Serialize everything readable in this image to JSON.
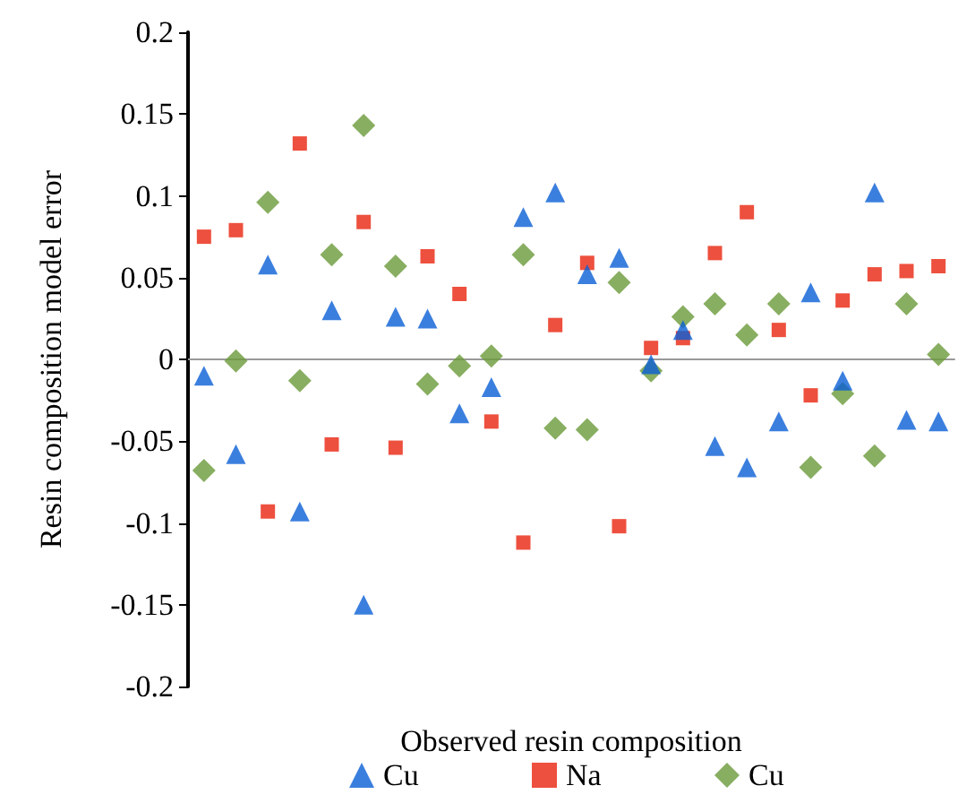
{
  "chart_data": {
    "type": "scatter",
    "xlabel": "Observed resin composition",
    "ylabel": "Resin composition model error",
    "categories": [
      null,
      null,
      null,
      null,
      null,
      null,
      null,
      null,
      null,
      null,
      null,
      null,
      null,
      null,
      null,
      null,
      null,
      null,
      null,
      null,
      null,
      null,
      null,
      null
    ],
    "ylim": [
      -0.2,
      0.2
    ],
    "yticks": [
      -0.2,
      -0.15,
      -0.1,
      -0.05,
      0,
      0.05,
      0.1,
      0.15,
      0.2
    ],
    "legend": "bottom",
    "tick_labels": "y",
    "series": [
      {
        "name": "Cu",
        "color": "#0a5fd6",
        "marker": "triangle",
        "values": [
          -0.01,
          -0.058,
          0.058,
          -0.093,
          0.03,
          -0.15,
          0.026,
          0.025,
          -0.033,
          -0.017,
          0.087,
          0.102,
          0.052,
          0.062,
          -0.003,
          0.018,
          -0.053,
          -0.066,
          -0.038,
          0.041,
          -0.013,
          0.102,
          -0.037,
          -0.038
        ]
      },
      {
        "name": "Na",
        "color": "#e8240e",
        "marker": "square",
        "values": [
          0.075,
          0.079,
          -0.093,
          0.132,
          -0.052,
          0.084,
          -0.054,
          0.063,
          0.04,
          -0.038,
          -0.112,
          0.021,
          0.059,
          -0.102,
          0.007,
          0.013,
          0.065,
          0.09,
          0.018,
          -0.022,
          0.036,
          0.052,
          0.054,
          0.057
        ]
      },
      {
        "name": "Cu",
        "color": "#6a9a3a",
        "marker": "diamond",
        "values": [
          -0.068,
          -0.001,
          0.096,
          -0.013,
          0.064,
          0.143,
          0.057,
          -0.015,
          -0.004,
          0.002,
          0.064,
          -0.042,
          -0.043,
          0.047,
          -0.007,
          0.026,
          0.034,
          0.015,
          0.034,
          -0.066,
          -0.021,
          -0.059,
          0.034,
          0.003
        ]
      }
    ]
  }
}
